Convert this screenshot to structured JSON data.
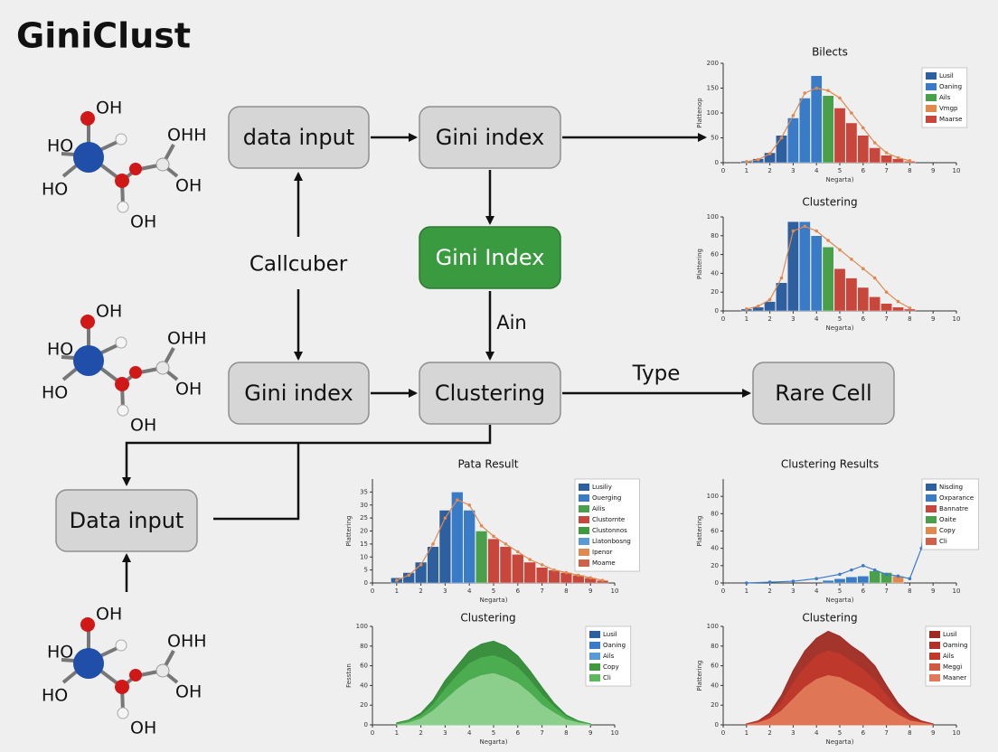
{
  "title": "GiniClust",
  "molecules": [
    [
      "OH",
      "HO",
      "OHH",
      "HO",
      "OH",
      "OH"
    ],
    [
      "OH",
      "HO",
      "OHH",
      "HO",
      "OH",
      "OH"
    ],
    [
      "OH",
      "HO",
      "OHH",
      "HO",
      "OH",
      "OH"
    ]
  ],
  "nodes": [
    {
      "label": "data input"
    },
    {
      "label": "Gini index"
    },
    {
      "label": "Gini Index"
    },
    {
      "label": "Gini index"
    },
    {
      "label": "Clustering"
    },
    {
      "label": "Rare Cell"
    },
    {
      "label": "Data input"
    }
  ],
  "edge_labels": [
    "Callcuber",
    "Ain",
    "Type"
  ],
  "charts": [
    {
      "title": "Bilects",
      "ylabel": "Plattenop",
      "xlabel": "Negarta)",
      "xlim": [
        0,
        10
      ],
      "xticks": [
        0,
        1,
        2,
        3,
        4,
        5,
        6,
        7,
        8,
        9,
        10
      ],
      "ylim": [
        0,
        200
      ],
      "yticks": [
        0,
        50,
        100,
        150,
        200
      ],
      "bar_x": [
        1,
        1.5,
        2,
        2.5,
        3,
        3.5,
        4,
        4.5,
        5,
        5.5,
        6,
        6.5,
        7,
        7.5,
        8
      ],
      "values": [
        3,
        8,
        20,
        55,
        90,
        130,
        175,
        135,
        110,
        80,
        55,
        30,
        15,
        8,
        3
      ],
      "colors": [
        "#2e5f9e",
        "#2e5f9e",
        "#2e5f9e",
        "#2e5f9e",
        "#3a7bc8",
        "#3a7bc8",
        "#3a7bc8",
        "#4aa04a",
        "#c8473d",
        "#c8473d",
        "#c8473d",
        "#c8473d",
        "#c8473d",
        "#c8473d",
        "#c8473d"
      ],
      "line_values": [
        2,
        6,
        18,
        50,
        95,
        140,
        150,
        145,
        130,
        100,
        70,
        40,
        20,
        10,
        4
      ],
      "line_color": "#e08a50",
      "legend": [
        {
          "name": "Lusil",
          "color": "#2e5f9e"
        },
        {
          "name": "Oaning",
          "color": "#3a7bc8"
        },
        {
          "name": "Ails",
          "color": "#4aa04a"
        },
        {
          "name": "Vmgp",
          "color": "#e08a50"
        },
        {
          "name": "Maarse",
          "color": "#c8473d"
        }
      ]
    },
    {
      "title": "Clustering",
      "ylabel": "Plattering",
      "xlabel": "Negarta)",
      "xlim": [
        0,
        10
      ],
      "xticks": [
        0,
        1,
        2,
        3,
        4,
        5,
        6,
        7,
        8,
        9,
        10
      ],
      "ylim": [
        0,
        100
      ],
      "yticks": [
        0,
        20,
        40,
        60,
        80,
        100
      ],
      "bar_x": [
        1,
        1.5,
        2,
        2.5,
        3,
        3.5,
        4,
        4.5,
        5,
        5.5,
        6,
        6.5,
        7,
        7.5,
        8
      ],
      "values": [
        2,
        4,
        10,
        30,
        95,
        95,
        80,
        68,
        45,
        35,
        25,
        15,
        8,
        4,
        2
      ],
      "colors": [
        "#2e5f9e",
        "#2e5f9e",
        "#2e5f9e",
        "#2e5f9e",
        "#2e5f9e",
        "#3a7bc8",
        "#3a7bc8",
        "#4aa04a",
        "#c8473d",
        "#c8473d",
        "#c8473d",
        "#c8473d",
        "#c8473d",
        "#c8473d",
        "#c8473d"
      ],
      "line_values": [
        2,
        5,
        12,
        35,
        85,
        90,
        85,
        75,
        65,
        55,
        45,
        35,
        20,
        10,
        3
      ],
      "line_color": "#e08a50"
    },
    {
      "title": "Pata Result",
      "ylabel": "Plattering",
      "xlabel": "Negarta)",
      "xlim": [
        0,
        10
      ],
      "xticks": [
        0,
        1,
        2,
        3,
        4,
        5,
        6,
        7,
        8,
        9,
        10
      ],
      "ylim": [
        0,
        40
      ],
      "yticks": [
        0,
        5,
        10,
        15,
        20,
        25,
        30,
        35
      ],
      "bar_x": [
        1,
        1.5,
        2,
        2.5,
        3,
        3.5,
        4,
        4.5,
        5,
        5.5,
        6,
        6.5,
        7,
        7.5,
        8,
        8.5,
        9,
        9.5
      ],
      "values": [
        2,
        4,
        8,
        14,
        28,
        35,
        28,
        20,
        17,
        14,
        11,
        8,
        6,
        5,
        4,
        3,
        2,
        1
      ],
      "colors": [
        "#2e5f9e",
        "#2e5f9e",
        "#2e5f9e",
        "#2e5f9e",
        "#2e5f9e",
        "#3a7bc8",
        "#3a7bc8",
        "#4aa04a",
        "#c8473d",
        "#c8473d",
        "#c8473d",
        "#c8473d",
        "#c8473d",
        "#c8473d",
        "#c8473d",
        "#c8473d",
        "#c8473d",
        "#c8473d"
      ],
      "line_values": [
        1,
        3,
        7,
        15,
        25,
        32,
        30,
        22,
        18,
        15,
        12,
        9,
        7,
        5,
        4,
        3,
        2,
        1
      ],
      "line_color": "#e08a50",
      "legend": [
        {
          "name": "Lusiliy",
          "color": "#2e5f9e"
        },
        {
          "name": "Ouerging",
          "color": "#3a7bc8"
        },
        {
          "name": "Ailis",
          "color": "#4aa04a"
        },
        {
          "name": "Clustornte",
          "color": "#c8473d"
        },
        {
          "name": "Clustonnos",
          "color": "#3f9a3f"
        },
        {
          "name": "Llatonbosng",
          "color": "#5a9ad6"
        },
        {
          "name": "Ipenor",
          "color": "#e08a50"
        },
        {
          "name": "Moame",
          "color": "#d0604a"
        }
      ]
    },
    {
      "title": "Clustering Results",
      "ylabel": "Plattering",
      "xlabel": "Negarta)",
      "xlim": [
        0,
        10
      ],
      "xticks": [
        0,
        1,
        2,
        3,
        4,
        5,
        6,
        7,
        8,
        9,
        10
      ],
      "ylim": [
        0,
        120
      ],
      "yticks": [
        0,
        20,
        40,
        60,
        80,
        100
      ],
      "bar_x": [
        4.5,
        5,
        5.5,
        6,
        6.5,
        7,
        7.5
      ],
      "values": [
        3,
        5,
        7,
        8,
        14,
        12,
        8
      ],
      "colors": [
        "#3a7bc8",
        "#3a7bc8",
        "#3a7bc8",
        "#3a7bc8",
        "#4aa04a",
        "#4aa04a",
        "#e08a50"
      ],
      "line_x": [
        1,
        2,
        3,
        4,
        5,
        5.5,
        6,
        6.5,
        7,
        7.5,
        8,
        8.5,
        8.8
      ],
      "line_values": [
        0,
        1,
        2,
        5,
        10,
        15,
        20,
        15,
        10,
        8,
        5,
        40,
        115
      ],
      "line_color": "#3a7bc8",
      "legend": [
        {
          "name": "Nisding",
          "color": "#2e5f9e"
        },
        {
          "name": "Oxparance",
          "color": "#3a7bc8"
        },
        {
          "name": "Bannatre",
          "color": "#c8473d"
        },
        {
          "name": "Oaite",
          "color": "#4aa04a"
        },
        {
          "name": "Copy",
          "color": "#e08a50"
        },
        {
          "name": "Cli",
          "color": "#d0604a"
        }
      ]
    },
    {
      "title": "Clustering",
      "ylabel": "Fesstan",
      "xlabel": "Negarta)",
      "xlim": [
        0,
        10
      ],
      "xticks": [
        0,
        1,
        2,
        3,
        4,
        5,
        6,
        7,
        8,
        9,
        10
      ],
      "ylim": [
        0,
        100
      ],
      "yticks": [
        0,
        20,
        40,
        60,
        80,
        100
      ],
      "area_x": [
        1,
        1.5,
        2,
        2.5,
        3,
        3.5,
        4,
        4.5,
        5,
        5.5,
        6,
        6.5,
        7,
        7.5,
        8,
        8.5,
        9
      ],
      "areas": [
        {
          "color": "#2f8a35",
          "values": [
            2,
            5,
            12,
            25,
            45,
            60,
            75,
            82,
            85,
            80,
            70,
            55,
            38,
            22,
            10,
            4,
            1
          ]
        },
        {
          "color": "#4caf50",
          "values": [
            1,
            4,
            9,
            20,
            36,
            50,
            62,
            68,
            70,
            66,
            58,
            45,
            30,
            18,
            8,
            3,
            1
          ]
        },
        {
          "color": "#8fd08f",
          "values": [
            0,
            2,
            6,
            14,
            25,
            36,
            45,
            50,
            52,
            48,
            42,
            32,
            20,
            12,
            5,
            2,
            0
          ]
        }
      ],
      "legend": [
        {
          "name": "Lusil",
          "color": "#2e5f9e"
        },
        {
          "name": "Oaning",
          "color": "#3a7bc8"
        },
        {
          "name": "Ails",
          "color": "#5a9ad6"
        },
        {
          "name": "Copy",
          "color": "#3f9a3f"
        },
        {
          "name": "Cli",
          "color": "#5cb85c"
        }
      ]
    },
    {
      "title": "Clustering",
      "ylabel": "Plattering",
      "xlabel": "Negarta)",
      "xlim": [
        0,
        10
      ],
      "xticks": [
        0,
        1,
        2,
        3,
        4,
        5,
        6,
        7,
        8,
        9,
        10
      ],
      "ylim": [
        0,
        100
      ],
      "yticks": [
        0,
        20,
        40,
        60,
        80,
        100
      ],
      "area_x": [
        1,
        1.5,
        2,
        2.5,
        3,
        3.5,
        4,
        4.5,
        5,
        5.5,
        6,
        6.5,
        7,
        7.5,
        8,
        8.5,
        9
      ],
      "areas": [
        {
          "color": "#9e2a22",
          "values": [
            1,
            4,
            12,
            30,
            55,
            75,
            88,
            95,
            90,
            80,
            72,
            60,
            40,
            22,
            10,
            4,
            1
          ]
        },
        {
          "color": "#c0392b",
          "values": [
            1,
            3,
            9,
            22,
            42,
            58,
            70,
            75,
            72,
            64,
            56,
            45,
            30,
            16,
            7,
            3,
            1
          ]
        },
        {
          "color": "#e07a5a",
          "values": [
            0,
            2,
            6,
            14,
            26,
            38,
            46,
            50,
            48,
            42,
            36,
            28,
            18,
            10,
            4,
            2,
            0
          ]
        }
      ],
      "legend": [
        {
          "name": "Lusil",
          "color": "#9e2a22"
        },
        {
          "name": "Oaming",
          "color": "#b03428"
        },
        {
          "name": "Ails",
          "color": "#c0392b"
        },
        {
          "name": "Meggi",
          "color": "#d05a40"
        },
        {
          "name": "Maaner",
          "color": "#e07a5a"
        }
      ]
    }
  ]
}
